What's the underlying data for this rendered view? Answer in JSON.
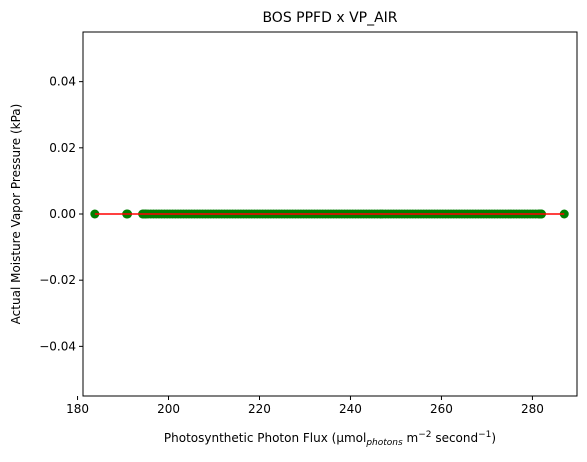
{
  "chart_data": {
    "type": "scatter",
    "title": "BOS PPFD x VP_AIR",
    "xlabel": {
      "prefix": "Photosynthetic Photon Flux (",
      "mu": "μmol",
      "sub": "photons",
      "mid": " m",
      "exp1": "−2",
      "mid2": " second",
      "exp2": "−1",
      "suffix": ")"
    },
    "ylabel": "Actual Moisture Vapor Pressure (kPa)",
    "xlim": [
      181.2,
      289.8
    ],
    "ylim": [
      -0.055,
      0.055
    ],
    "xticks": [
      180,
      200,
      220,
      240,
      260,
      280
    ],
    "xtick_labels": [
      "180",
      "200",
      "220",
      "240",
      "260",
      "280"
    ],
    "yticks": [
      -0.04,
      -0.02,
      0.0,
      0.02,
      0.04
    ],
    "ytick_labels": [
      "−0.04",
      "−0.02",
      "0.00",
      "0.02",
      "0.04"
    ],
    "grid": false,
    "series": [
      {
        "kind": "points",
        "color": "#007f00",
        "isolated_x": [
          183.8,
          190.8,
          191.0,
          194.5,
          195.0,
          281.6,
          282.0,
          287.0
        ],
        "dense_range": [
          194.3,
          282.3
        ],
        "y": 0.0
      },
      {
        "kind": "line",
        "color": "#ff0000",
        "x": [
          183.8,
          287.0
        ],
        "y": [
          0.0,
          0.0
        ]
      }
    ]
  }
}
